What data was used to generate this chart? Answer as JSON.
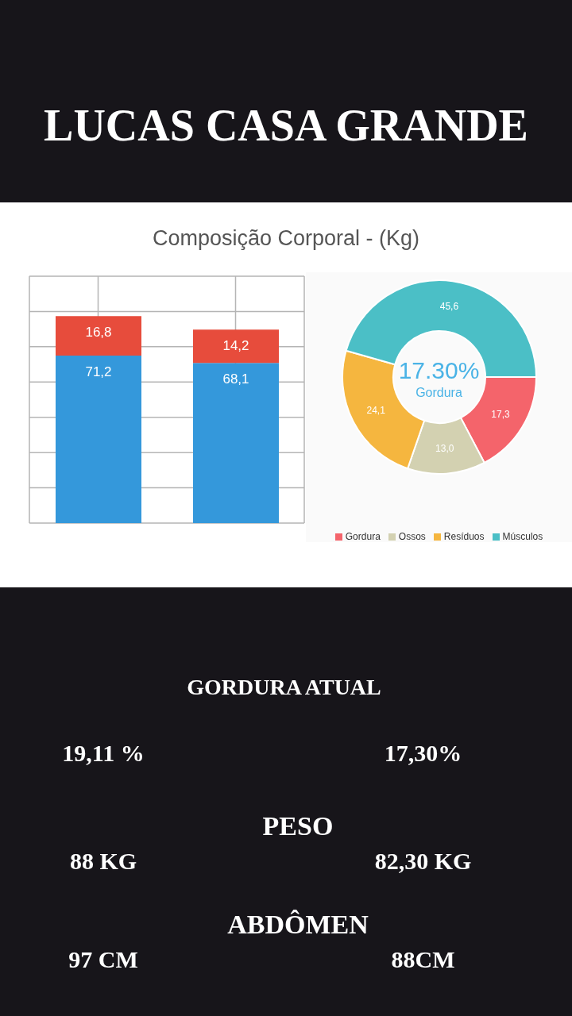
{
  "chart_data": [
    {
      "type": "other",
      "title": "LUCAS CASA GRANDE"
    },
    {
      "type": "bar",
      "title": "Composição Corporal - (Kg)",
      "categories": [
        null,
        null
      ],
      "stacked": true,
      "grid": true,
      "series": [
        {
          "color": "#3498db",
          "values": [
            71.2,
            68.1
          ],
          "value_labels": [
            "71,2",
            "68,1"
          ]
        },
        {
          "color": "#e74c3c",
          "values": [
            16.8,
            14.2
          ],
          "value_labels": [
            "16,8",
            "14,2"
          ]
        }
      ]
    },
    {
      "type": "donut",
      "categories": [
        "Gordura",
        "Ossos",
        "Resíduos",
        "Músculos"
      ],
      "values": [
        17.3,
        13.0,
        24.1,
        45.6
      ],
      "value_labels": [
        "17,3",
        "13,0",
        "24,1",
        "45,6"
      ],
      "colors": [
        "#f4646b",
        "#d3d1b1",
        "#f5b63f",
        "#4bbfc6"
      ],
      "legend": "bottom",
      "annotations": [
        "17.30%",
        "Gordura"
      ]
    },
    {
      "type": "other",
      "annotations": [
        "GORDURA ATUAL",
        "19,11 %",
        "17,30%",
        "PESO",
        "88 KG",
        "82,30 KG",
        "ABDÔMEN",
        "97 CM",
        "88CM"
      ]
    }
  ]
}
